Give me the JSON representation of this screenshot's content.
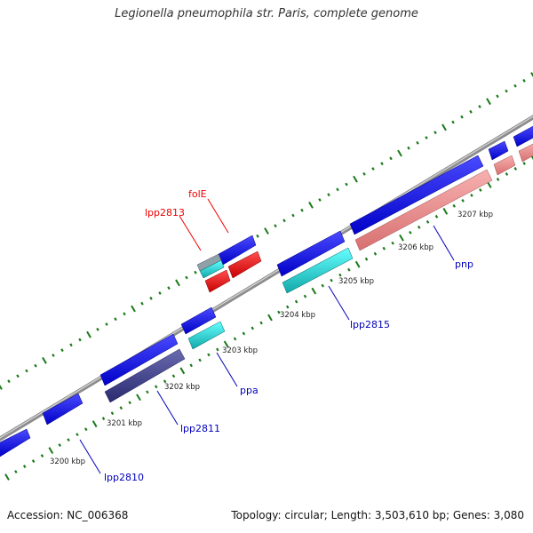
{
  "title": "Legionella pneumophila str. Paris, complete genome",
  "footer": {
    "accession": "Accession: NC_006368",
    "summary": "Topology: circular; Length: 3,503,610 bp; Genes: 3,080"
  },
  "ticks": [
    "3200 kbp",
    "3201 kbp",
    "3202 kbp",
    "3203 kbp",
    "3204 kbp",
    "3205 kbp",
    "3206 kbp",
    "3207 kbp"
  ],
  "gene_labels": {
    "lpp2813": "lpp2813",
    "folE": "folE",
    "lpp2815": "lpp2815",
    "pnp": "pnp",
    "ppa": "ppa",
    "lpp2811": "lpp2811",
    "lpp2810": "lpp2810"
  },
  "colors": {
    "backbone": "#8c8c8c",
    "forward_cds": "#0000ee",
    "reverse_cds": "#f08c8c",
    "cyan": "#18d0d0",
    "purple": "#3f3f8f",
    "red": "#ee0000",
    "rna_label": "#ee0000",
    "cds_label": "#0000bb",
    "tick_mark": "#1a7a1a"
  }
}
